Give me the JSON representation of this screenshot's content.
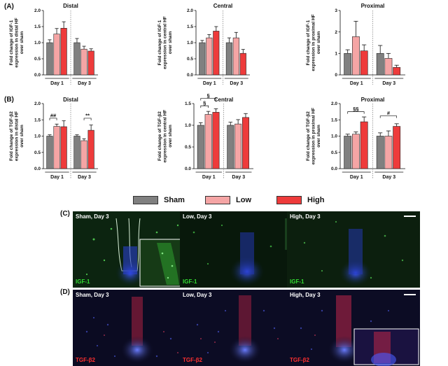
{
  "panel_labels": {
    "a": "(A)",
    "b": "(B)",
    "c": "(C)",
    "d": "(D)"
  },
  "legend": [
    {
      "label": "Sham",
      "color": "#808080"
    },
    {
      "label": "Low",
      "color": "#f5a5a5"
    },
    {
      "label": "High",
      "color": "#ee3b3b"
    }
  ],
  "chart_data": [
    {
      "type": "bar",
      "panel": "A",
      "title": "Distal",
      "ylabel": [
        "Fold change of IGF-1",
        "expression in distal HF",
        "over sham"
      ],
      "ylim": [
        0,
        2.0
      ],
      "yticks": [
        "0.0",
        "0.5",
        "1.0",
        "1.5",
        "2.0"
      ],
      "ytick_values": [
        0,
        0.5,
        1.0,
        1.5,
        2.0
      ],
      "groups": [
        "Day 1",
        "Day 3"
      ],
      "series": [
        "Sham",
        "Low",
        "High"
      ],
      "values": [
        [
          1.0,
          1.27,
          1.45
        ],
        [
          1.0,
          0.8,
          0.74
        ]
      ],
      "errors": [
        [
          0.09,
          0.17,
          0.2
        ],
        [
          0.13,
          0.09,
          0.07
        ]
      ],
      "annotations": []
    },
    {
      "type": "bar",
      "panel": "A",
      "title": "Central",
      "ylabel": [
        "Fold change of IGF-1",
        "expression in central HF",
        "over sham"
      ],
      "ylim": [
        0,
        2.0
      ],
      "yticks": [
        "0.0",
        "0.5",
        "1.0",
        "1.5",
        "2.0"
      ],
      "ytick_values": [
        0,
        0.5,
        1.0,
        1.5,
        2.0
      ],
      "groups": [
        "Day 1",
        "Day 3"
      ],
      "series": [
        "Sham",
        "Low",
        "High"
      ],
      "values": [
        [
          1.0,
          1.15,
          1.36
        ],
        [
          1.0,
          1.15,
          0.67
        ]
      ],
      "errors": [
        [
          0.07,
          0.1,
          0.14
        ],
        [
          0.15,
          0.17,
          0.12
        ]
      ],
      "annotations": []
    },
    {
      "type": "bar",
      "panel": "A",
      "title": "Proximal",
      "ylabel": [
        "Fold change of IGF-1",
        "expression in proximal HF",
        "over sham"
      ],
      "ylim": [
        0,
        3
      ],
      "yticks": [
        "0",
        "1",
        "2",
        "3"
      ],
      "ytick_values": [
        0,
        1,
        2,
        3
      ],
      "groups": [
        "Day 1",
        "Day 3"
      ],
      "series": [
        "Sham",
        "Low",
        "High"
      ],
      "values": [
        [
          1.0,
          1.78,
          1.12
        ],
        [
          1.0,
          0.77,
          0.35
        ]
      ],
      "errors": [
        [
          0.17,
          0.72,
          0.28
        ],
        [
          0.37,
          0.23,
          0.1
        ]
      ],
      "annotations": []
    },
    {
      "type": "bar",
      "panel": "B",
      "title": "Distal",
      "ylabel": [
        "Fold change of TGF-β2",
        "expression in distal HF",
        "over sham"
      ],
      "ylim": [
        0,
        2.0
      ],
      "yticks": [
        "0.0",
        "0.5",
        "1.0",
        "1.5",
        "2.0"
      ],
      "ytick_values": [
        0,
        0.5,
        1.0,
        1.5,
        2.0
      ],
      "groups": [
        "Day 1",
        "Day 3"
      ],
      "series": [
        "Sham",
        "Low",
        "High"
      ],
      "values": [
        [
          1.0,
          1.3,
          1.29
        ],
        [
          1.0,
          0.86,
          1.18
        ]
      ],
      "errors": [
        [
          0.04,
          0.07,
          0.18
        ],
        [
          0.04,
          0.06,
          0.16
        ]
      ],
      "annotations": [
        {
          "text": "##",
          "from": [
            0,
            0
          ],
          "to": [
            0,
            1
          ],
          "level": 1.55
        },
        {
          "text": "**",
          "from": [
            1,
            1
          ],
          "to": [
            1,
            2
          ],
          "level": 1.55
        }
      ]
    },
    {
      "type": "bar",
      "panel": "B",
      "title": "Central",
      "ylabel": [
        "Fold change of TGF-β2",
        "expression in central HF",
        "over sham"
      ],
      "ylim": [
        0,
        1.5
      ],
      "yticks": [
        "0.0",
        "0.5",
        "1.0",
        "1.5"
      ],
      "ytick_values": [
        0,
        0.5,
        1.0,
        1.5
      ],
      "groups": [
        "Day 1",
        "Day 3"
      ],
      "series": [
        "Sham",
        "Low",
        "High"
      ],
      "values": [
        [
          1.0,
          1.25,
          1.3
        ],
        [
          1.0,
          1.03,
          1.18
        ]
      ],
      "errors": [
        [
          0.06,
          0.07,
          0.08
        ],
        [
          0.07,
          0.1,
          0.09
        ]
      ],
      "annotations": [
        {
          "text": "§",
          "from": [
            0,
            0
          ],
          "to": [
            0,
            1
          ],
          "level": 1.45
        },
        {
          "text": "§",
          "from": [
            0,
            0
          ],
          "to": [
            0,
            2
          ],
          "level": 1.62
        }
      ]
    },
    {
      "type": "bar",
      "panel": "B",
      "title": "Proximal",
      "ylabel": [
        "Fold change of TGF-β2",
        "expression in proximal HF",
        "over sham"
      ],
      "ylim": [
        0,
        2.0
      ],
      "yticks": [
        "0.0",
        "0.5",
        "1.0",
        "1.5",
        "2.0"
      ],
      "ytick_values": [
        0,
        0.5,
        1.0,
        1.5,
        2.0
      ],
      "groups": [
        "Day 1",
        "Day 3"
      ],
      "series": [
        "Sham",
        "Low",
        "High"
      ],
      "values": [
        [
          1.0,
          1.06,
          1.44
        ],
        [
          1.0,
          1.0,
          1.3
        ]
      ],
      "errors": [
        [
          0.06,
          0.07,
          0.15
        ],
        [
          0.1,
          0.16,
          0.08
        ]
      ],
      "annotations": [
        {
          "text": "§§",
          "from": [
            0,
            0
          ],
          "to": [
            0,
            2
          ],
          "level": 1.75
        },
        {
          "text": "#",
          "from": [
            1,
            0
          ],
          "to": [
            1,
            2
          ],
          "level": 1.62
        }
      ]
    }
  ],
  "micrographs": [
    {
      "title": "Sham, Day 3",
      "stain": "IGF-1",
      "stain_color": "#33dd33"
    },
    {
      "title": "Low, Day 3",
      "stain": "IGF-1",
      "stain_color": "#33dd33"
    },
    {
      "title": "High, Day 3",
      "stain": "IGF-1",
      "stain_color": "#33dd33"
    },
    {
      "title": "Sham, Day 3",
      "stain": "TGF-β2",
      "stain_color": "#ff3030"
    },
    {
      "title": "Low, Day 3",
      "stain": "TGF-β2",
      "stain_color": "#ff3030"
    },
    {
      "title": "High, Day 3",
      "stain": "TGF-β2",
      "stain_color": "#ff3030"
    }
  ]
}
